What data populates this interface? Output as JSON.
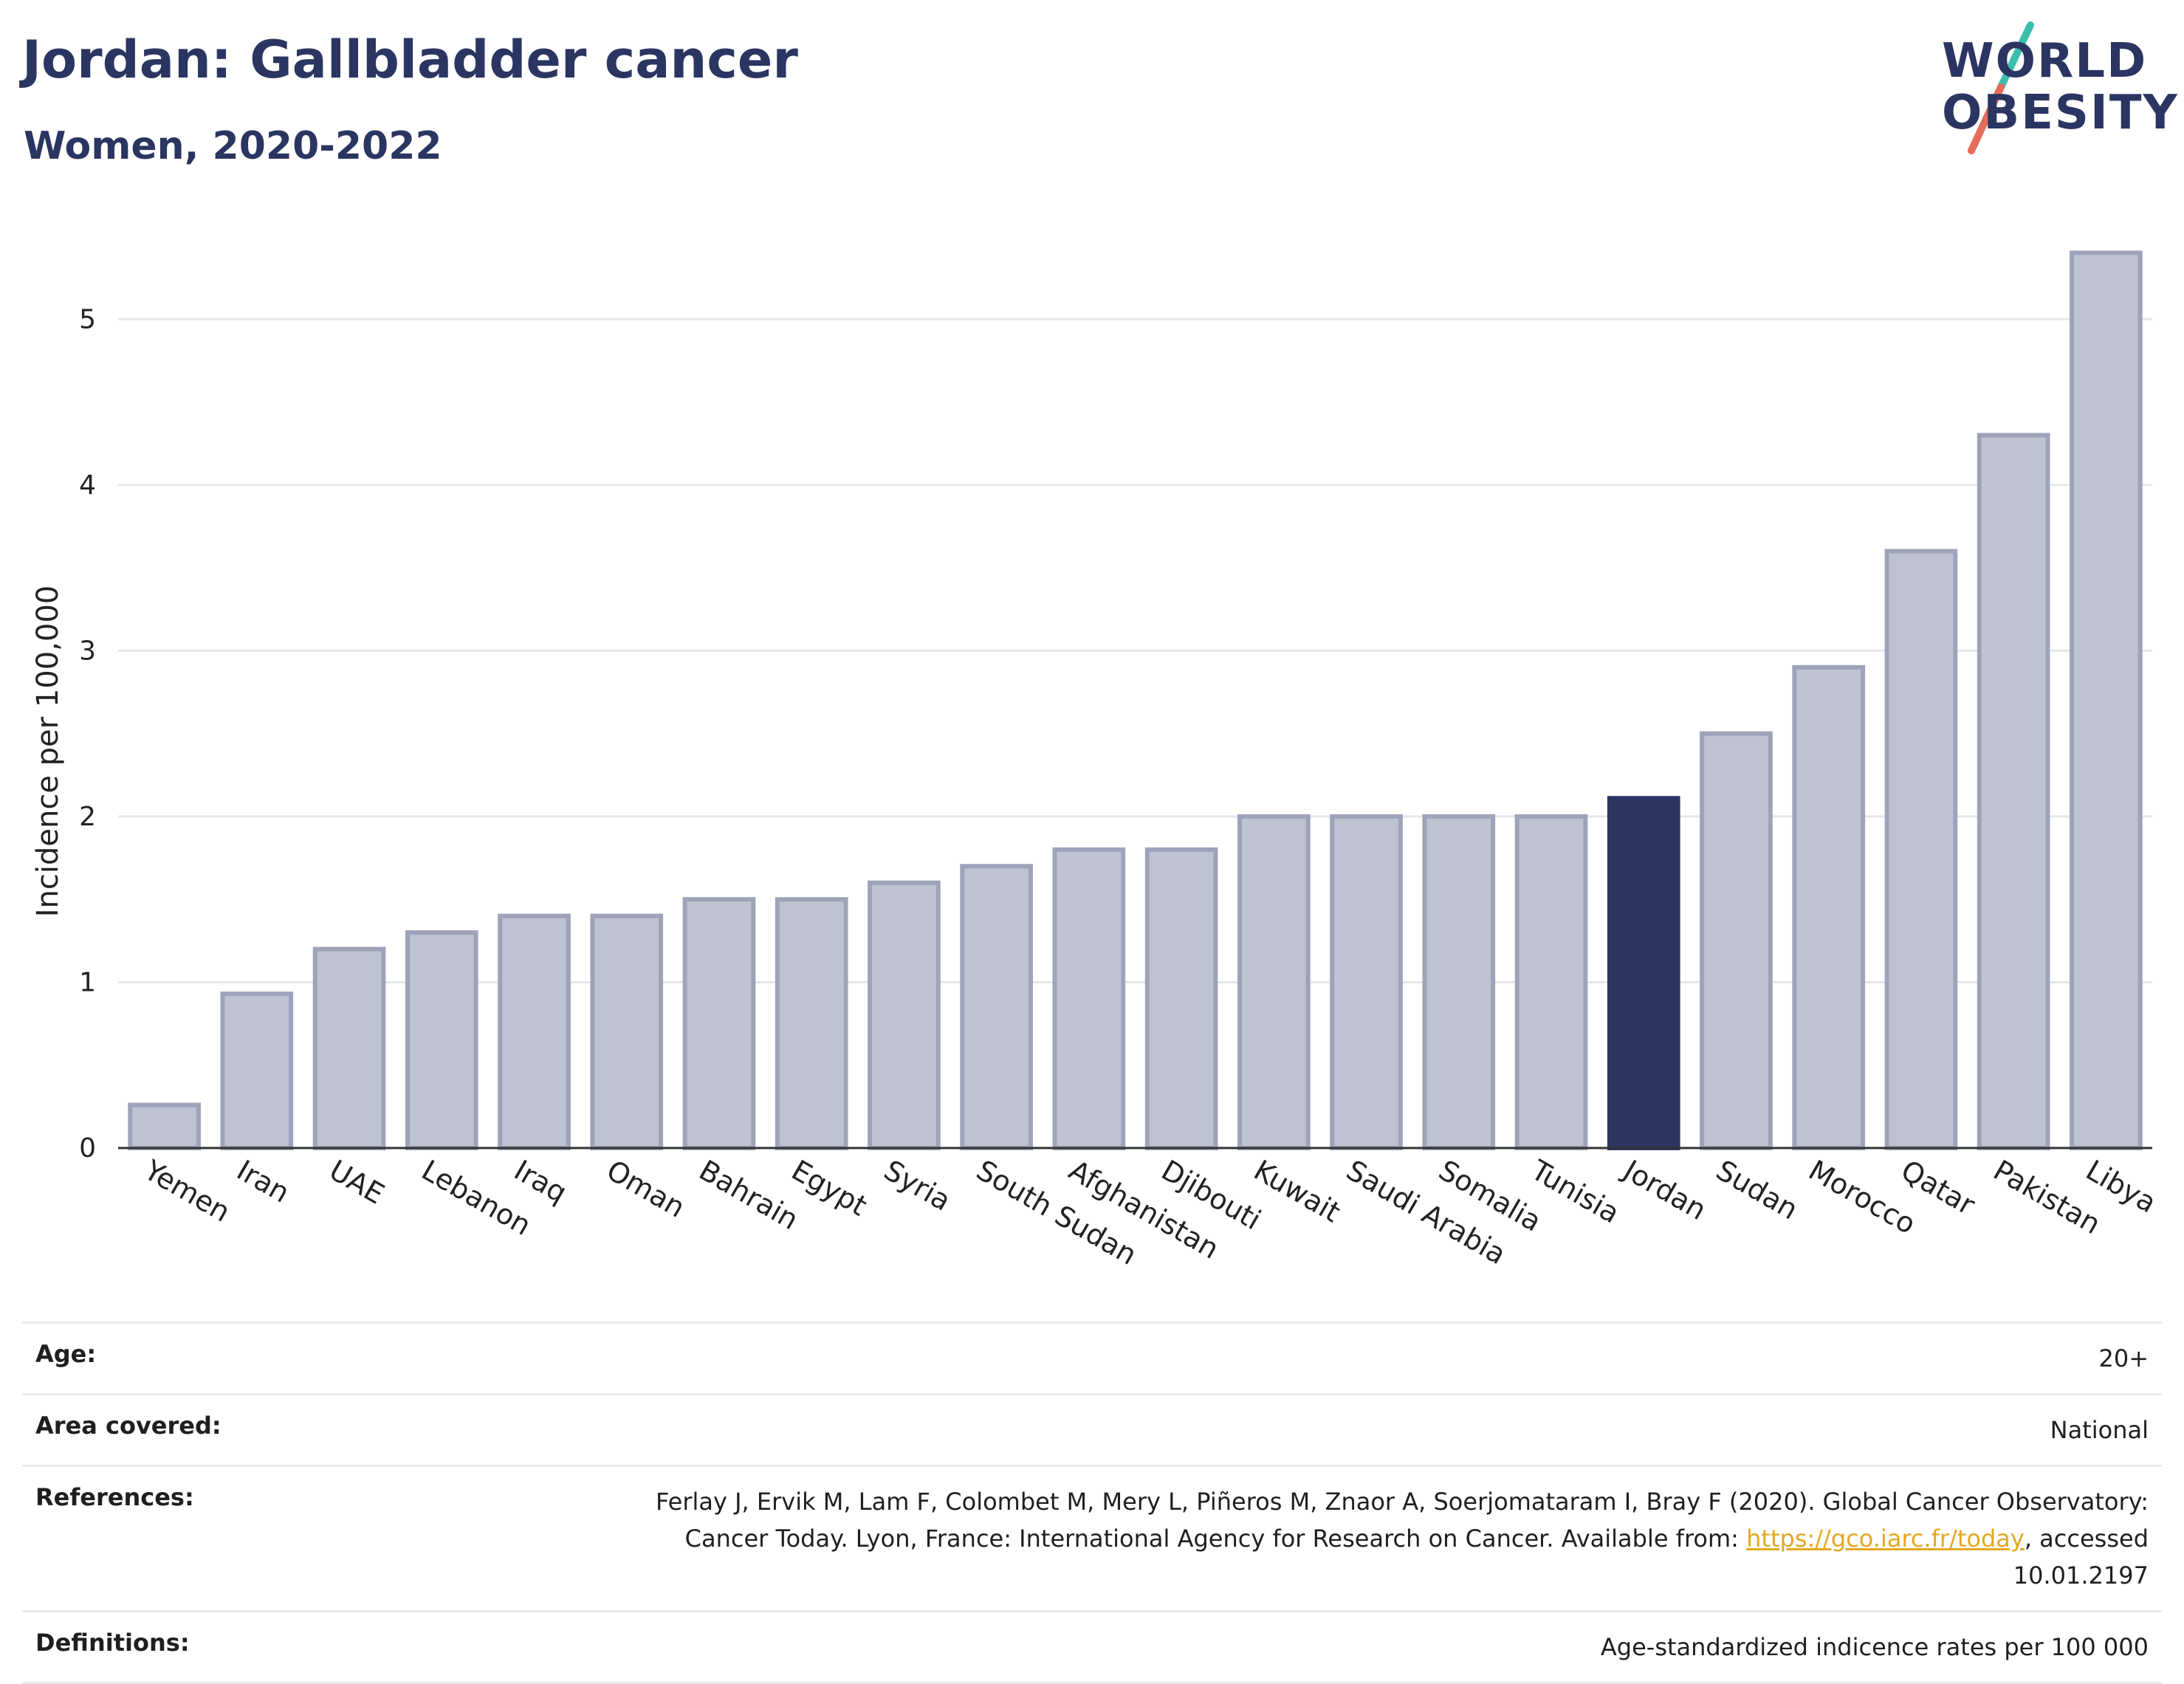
{
  "header": {
    "title": "Jordan: Gallbladder cancer",
    "subtitle": "Women, 2020-2022",
    "logo_line1": "WORLD",
    "logo_line2": "OBESITY"
  },
  "chart_data": {
    "type": "bar",
    "title": "Jordan: Gallbladder cancer",
    "subtitle": "Women, 2020-2022",
    "xlabel": "",
    "ylabel": "Incidence per 100,000",
    "ylim": [
      0,
      5.5
    ],
    "yticks": [
      0,
      1,
      2,
      3,
      4,
      5
    ],
    "grid": true,
    "highlight": "Jordan",
    "colors": {
      "bar": "#bfc2d0",
      "bar_edge": "#9ea3b9",
      "highlight": "#2b3561"
    },
    "categories": [
      "Yemen",
      "Iran",
      "UAE",
      "Lebanon",
      "Iraq",
      "Oman",
      "Bahrain",
      "Egypt",
      "Syria",
      "South Sudan",
      "Afghanistan",
      "Djibouti",
      "Kuwait",
      "Saudi Arabia",
      "Somalia",
      "Tunisia",
      "Jordan",
      "Sudan",
      "Morocco",
      "Qatar",
      "Pakistan",
      "Libya"
    ],
    "values": [
      0.26,
      0.93,
      1.2,
      1.3,
      1.4,
      1.4,
      1.5,
      1.5,
      1.6,
      1.7,
      1.8,
      1.8,
      2.0,
      2.0,
      2.0,
      2.0,
      2.11,
      2.5,
      2.9,
      3.6,
      4.3,
      5.4
    ]
  },
  "info": {
    "age_label": "Age:",
    "age_value": "20+",
    "area_label": "Area covered:",
    "area_value": "National",
    "ref_label": "References:",
    "ref_text1": "Ferlay J, Ervik M, Lam F, Colombet M, Mery L, Piñeros M, Znaor A, Soerjomataram I, Bray F (2020). Global Cancer Observatory: Cancer Today. Lyon, France: International Agency for Research on Cancer. Available from: ",
    "ref_link": "https://gco.iarc.fr/today",
    "ref_text2": ", accessed 10.01.2197",
    "def_label": "Definitions:",
    "def_value": "Age-standardized indicence rates per 100 000"
  }
}
